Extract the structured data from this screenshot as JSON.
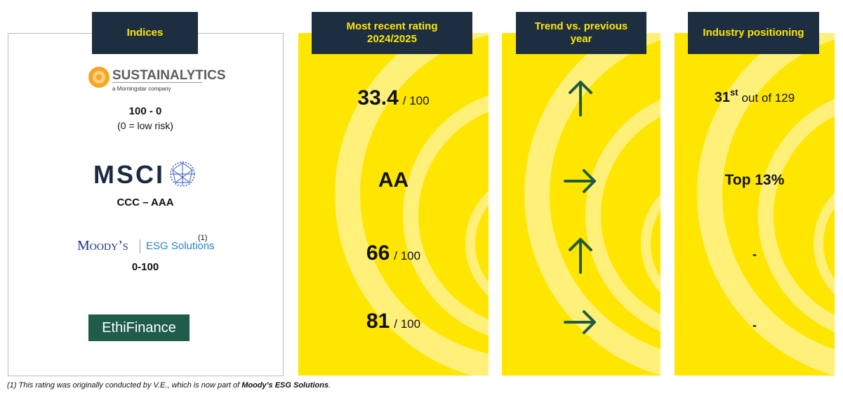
{
  "headers": {
    "indices": "Indices",
    "rating": [
      "Most recent rating",
      "2024/2025"
    ],
    "trend": [
      "Trend vs. previous",
      "year"
    ],
    "positioning": "Industry positioning"
  },
  "indices": [
    {
      "logo": "SUSTAINALYTICS",
      "logo_sub": "a Morningstar company",
      "scale": "100 - 0",
      "scale_note": "(0 = low risk)"
    },
    {
      "logo": "MSCI",
      "scale": "CCC – AAA"
    },
    {
      "logo": "Moody’s",
      "logo_sub": "ESG Solutions",
      "note_ref": "(1)",
      "scale": "0-100"
    },
    {
      "logo": "EthiFinance"
    }
  ],
  "ratings": [
    {
      "value": "33.4",
      "suffix": "/ 100"
    },
    {
      "value": "AA"
    },
    {
      "value": "66",
      "suffix": "/ 100"
    },
    {
      "value": "81",
      "suffix": "/ 100"
    }
  ],
  "positioning": [
    {
      "rank": "31",
      "ordinal": "st",
      "rest": "out of 129"
    },
    {
      "text": "Top 13%"
    },
    {
      "text": "-"
    },
    {
      "text": "-"
    }
  ],
  "footnote": {
    "text": "(1) This rating was originally conducted by V.E., which is now part of ",
    "bold": "Moody’s ESG Solutions",
    "end": "."
  }
}
